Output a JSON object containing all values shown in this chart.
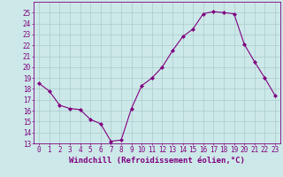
{
  "x": [
    0,
    1,
    2,
    3,
    4,
    5,
    6,
    7,
    8,
    9,
    10,
    11,
    12,
    13,
    14,
    15,
    16,
    17,
    18,
    19,
    20,
    21,
    22,
    23
  ],
  "y": [
    18.5,
    17.8,
    16.5,
    16.2,
    16.1,
    15.2,
    14.8,
    13.2,
    13.3,
    16.2,
    18.3,
    19.0,
    20.0,
    21.5,
    22.8,
    23.5,
    24.9,
    25.1,
    25.0,
    24.9,
    22.1,
    20.5,
    19.0,
    17.4
  ],
  "line_color": "#800080",
  "marker_color": "#800080",
  "bg_color": "#cce8e8",
  "grid_color": "#aacccc",
  "axis_color": "#800080",
  "xlabel": "Windchill (Refroidissement éolien,°C)",
  "xlim": [
    -0.5,
    23.5
  ],
  "ylim": [
    13,
    26
  ],
  "yticks": [
    13,
    14,
    15,
    16,
    17,
    18,
    19,
    20,
    21,
    22,
    23,
    24,
    25
  ],
  "xticks": [
    0,
    1,
    2,
    3,
    4,
    5,
    6,
    7,
    8,
    9,
    10,
    11,
    12,
    13,
    14,
    15,
    16,
    17,
    18,
    19,
    20,
    21,
    22,
    23
  ],
  "tick_fontsize": 5.5,
  "label_fontsize": 6.5
}
